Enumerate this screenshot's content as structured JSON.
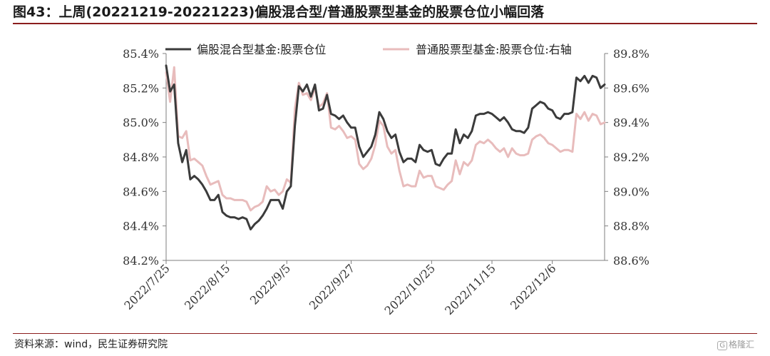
{
  "title": "图43：上周(20221219-20221223)偏股混合型/普通股票型基金的股票仓位小幅回落",
  "source": "资料来源：wind，民生证券研究院",
  "watermark": "格隆汇",
  "watermark_logo": "G",
  "colors": {
    "left_series": "#3b3b3b",
    "right_series": "#e8bcbc",
    "accent_rule": "#8b1d1d",
    "axis": "#7f7f7f"
  },
  "chart_data": {
    "type": "line",
    "title": "",
    "x_tick_labels": [
      "2022/7/25",
      "2022/8/15",
      "2022/9/5",
      "2022/9/27",
      "2022/10/25",
      "2022/11/15",
      "2022/12/6"
    ],
    "y_left": {
      "ticks": [
        "84.2%",
        "84.4%",
        "84.6%",
        "84.8%",
        "85.0%",
        "85.2%",
        "85.4%"
      ],
      "ylim": [
        84.2,
        85.4
      ],
      "unit": "%"
    },
    "y_right": {
      "ticks": [
        "88.6%",
        "88.8%",
        "89.0%",
        "89.2%",
        "89.4%",
        "89.6%",
        "89.8%"
      ],
      "ylim": [
        88.6,
        89.8
      ],
      "unit": "%"
    },
    "grid": false,
    "legend_position": "top",
    "series": [
      {
        "name": "偏股混合型基金:股票仓位",
        "axis": "left",
        "values": [
          85.33,
          85.18,
          85.22,
          84.88,
          84.77,
          84.84,
          84.67,
          84.69,
          84.67,
          84.64,
          84.6,
          84.55,
          84.55,
          84.58,
          84.48,
          84.46,
          84.45,
          84.45,
          84.44,
          84.45,
          84.44,
          84.38,
          84.41,
          84.43,
          84.46,
          84.5,
          84.55,
          84.55,
          84.55,
          84.5,
          84.6,
          84.63,
          84.98,
          85.21,
          85.18,
          85.22,
          85.15,
          85.22,
          85.07,
          85.08,
          85.16,
          85.05,
          85.04,
          85.02,
          85.04,
          85.0,
          84.97,
          84.97,
          84.86,
          84.8,
          84.83,
          84.86,
          84.93,
          85.06,
          85.02,
          84.95,
          84.91,
          84.93,
          84.83,
          84.77,
          84.79,
          84.79,
          84.77,
          84.87,
          84.84,
          84.83,
          84.84,
          84.76,
          84.75,
          84.79,
          84.82,
          84.82,
          84.96,
          84.88,
          84.93,
          84.91,
          84.95,
          85.04,
          85.05,
          85.05,
          85.06,
          85.05,
          85.03,
          85.01,
          85.03,
          85.0,
          84.96,
          84.95,
          84.95,
          84.94,
          84.97,
          85.08,
          85.1,
          85.12,
          85.11,
          85.08,
          85.07,
          85.03,
          85.02,
          85.05,
          85.05,
          85.06,
          85.26,
          85.24,
          85.27,
          85.23,
          85.27,
          85.26,
          85.2,
          85.22
        ]
      },
      {
        "name": "普通股票型基金:股票仓位:右轴",
        "axis": "right",
        "values": [
          89.69,
          89.52,
          89.72,
          89.32,
          89.31,
          89.35,
          89.18,
          89.19,
          89.17,
          89.15,
          89.09,
          89.04,
          89.05,
          89.06,
          88.98,
          88.96,
          88.96,
          88.95,
          88.95,
          88.95,
          88.94,
          88.89,
          88.91,
          88.92,
          88.94,
          89.03,
          89.0,
          89.01,
          88.98,
          89.0,
          89.07,
          89.05,
          89.48,
          89.63,
          89.56,
          89.57,
          89.53,
          89.6,
          89.49,
          89.51,
          89.57,
          89.37,
          89.36,
          89.38,
          89.35,
          89.31,
          89.32,
          89.3,
          89.16,
          89.13,
          89.15,
          89.19,
          89.27,
          89.41,
          89.38,
          89.26,
          89.22,
          89.24,
          89.12,
          89.03,
          89.04,
          89.03,
          89.03,
          89.12,
          89.08,
          89.09,
          89.09,
          89.03,
          89.02,
          89.01,
          89.04,
          89.06,
          89.18,
          89.1,
          89.17,
          89.15,
          89.18,
          89.27,
          89.29,
          89.28,
          89.3,
          89.28,
          89.25,
          89.23,
          89.25,
          89.2,
          89.25,
          89.22,
          89.21,
          89.21,
          89.22,
          89.3,
          89.32,
          89.33,
          89.31,
          89.28,
          89.27,
          89.25,
          89.23,
          89.24,
          89.24,
          89.23,
          89.45,
          89.42,
          89.46,
          89.41,
          89.45,
          89.44,
          89.39,
          89.4
        ]
      }
    ]
  }
}
